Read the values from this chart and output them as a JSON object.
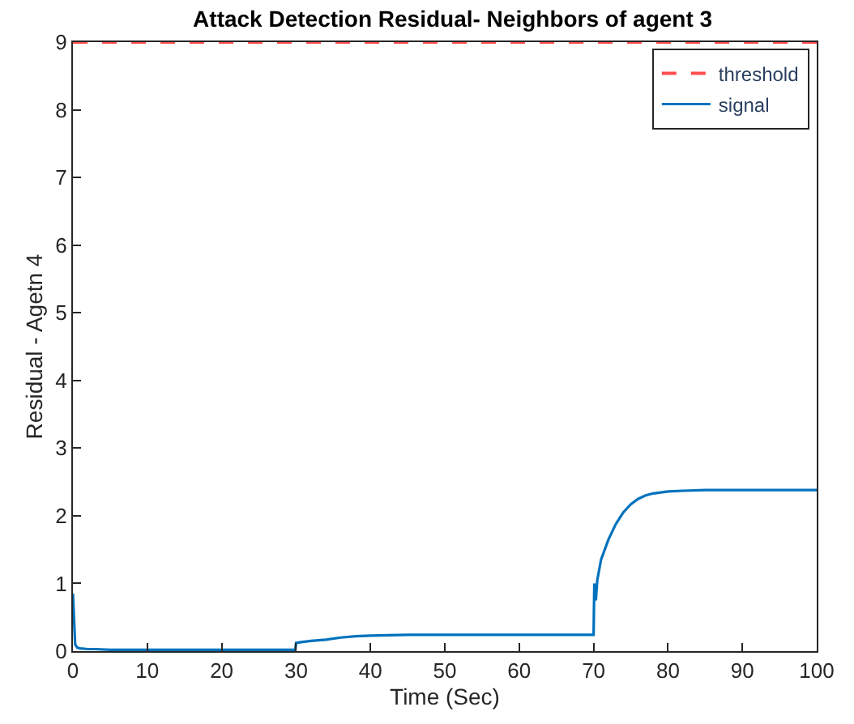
{
  "chart_data": {
    "type": "line",
    "title": "Attack Detection Residual- Neighbors of agent 3",
    "xlabel": "Time (Sec)",
    "ylabel": "Residual - Agetn 4",
    "xlim": [
      0,
      100
    ],
    "ylim": [
      0,
      9
    ],
    "xticks": [
      0,
      10,
      20,
      30,
      40,
      50,
      60,
      70,
      80,
      90,
      100
    ],
    "yticks": [
      0,
      1,
      2,
      3,
      4,
      5,
      6,
      7,
      8,
      9
    ],
    "grid": false,
    "legend": "top right",
    "marker": "none",
    "series": [
      {
        "name": "threshold",
        "color": "#ff4d4d",
        "line_style": "dashed",
        "x": [
          0,
          100
        ],
        "values": [
          9,
          9
        ]
      },
      {
        "name": "signal",
        "color": "#0072bd",
        "line_style": "solid",
        "x": [
          0,
          0.3,
          0.6,
          1,
          2,
          3,
          5,
          10,
          20,
          29.9,
          30,
          30.5,
          32,
          34,
          36,
          38,
          40,
          45,
          50,
          60,
          69.9,
          70,
          70.1,
          70.3,
          70.5,
          71,
          72,
          73,
          74,
          75,
          76,
          77,
          78,
          80,
          82,
          85,
          90,
          100
        ],
        "values": [
          0.85,
          0.1,
          0.05,
          0.04,
          0.03,
          0.03,
          0.02,
          0.02,
          0.02,
          0.02,
          0.12,
          0.13,
          0.15,
          0.17,
          0.2,
          0.22,
          0.23,
          0.24,
          0.24,
          0.24,
          0.24,
          0.24,
          1.0,
          0.75,
          1.05,
          1.35,
          1.65,
          1.88,
          2.05,
          2.17,
          2.25,
          2.3,
          2.33,
          2.36,
          2.37,
          2.38,
          2.38,
          2.38
        ]
      }
    ]
  }
}
